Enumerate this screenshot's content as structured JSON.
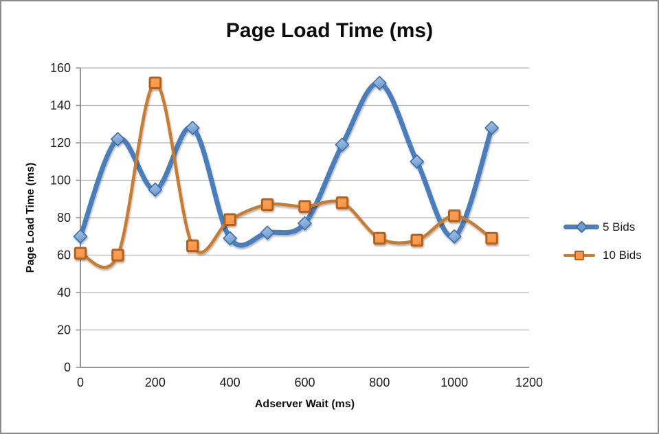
{
  "frame": {
    "border_color": "#8b8b8b",
    "background": "#ffffff"
  },
  "chart_data": {
    "type": "line",
    "title": "Page Load Time (ms)",
    "xlabel": "Adserver Wait (ms)",
    "ylabel": "Page Load Time (ms)",
    "x": [
      0,
      100,
      200,
      300,
      400,
      500,
      600,
      700,
      800,
      900,
      1000,
      1100
    ],
    "series": [
      {
        "name": "5 Bids",
        "marker": "diamond",
        "line_color": "#4a7ebb",
        "line_width": 7,
        "marker_fill_light": "#aac8ea",
        "marker_fill": "#6f9bd1",
        "marker_border": "#3c6da8",
        "values": [
          70,
          122,
          95,
          128,
          69,
          72,
          77,
          119,
          152,
          110,
          70,
          128
        ]
      },
      {
        "name": "10 Bids",
        "marker": "square",
        "line_color": "#c87b32",
        "line_width": 4.5,
        "marker_fill_light": "#f9a55c",
        "marker_fill": "#f79646",
        "marker_border": "#b3601f",
        "values": [
          61,
          60,
          152,
          65,
          79,
          87,
          86,
          88,
          69,
          68,
          81,
          69
        ]
      }
    ],
    "xlim": [
      0,
      1200
    ],
    "ylim": [
      0,
      160
    ],
    "x_ticks": [
      0,
      200,
      400,
      600,
      800,
      1000,
      1200
    ],
    "y_ticks": [
      0,
      20,
      40,
      60,
      80,
      100,
      120,
      140,
      160
    ],
    "grid": "horizontal",
    "smooth": true,
    "legend_position": "right",
    "colors": {
      "grid": "#b2b2b2",
      "axis": "#959595",
      "tick_text": "#1a1a1a"
    }
  }
}
